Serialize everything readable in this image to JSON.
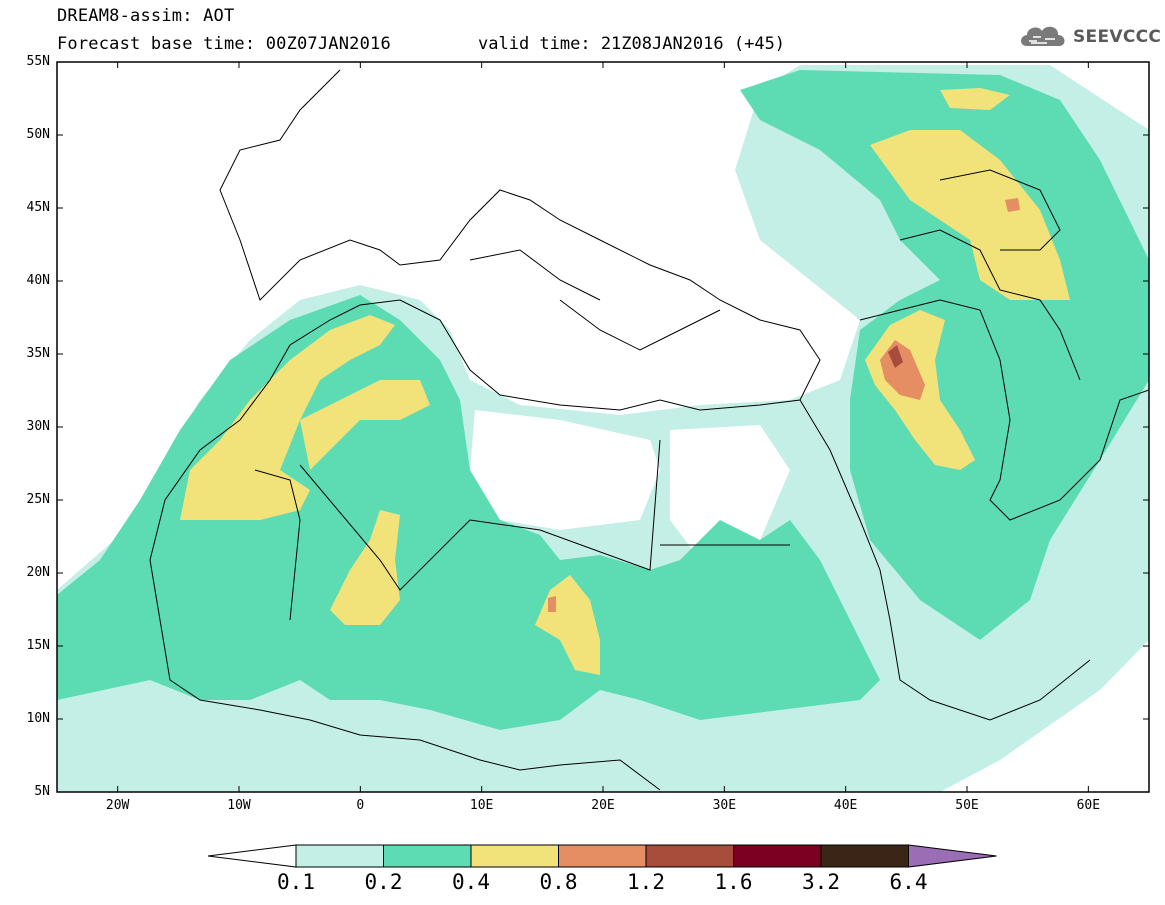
{
  "title": {
    "line1": "DREAM8-assim: AOT",
    "line2": "Forecast base time: 00Z07JAN2016",
    "valid": "valid time: 21Z08JAN2016 (+45)"
  },
  "logo": {
    "text": "SEEVCCC",
    "icon": "cloud-icon"
  },
  "map": {
    "lon_range": [
      -25,
      65
    ],
    "lat_range": [
      5,
      55
    ],
    "y_ticks": [
      {
        "value": 55,
        "label": "55N"
      },
      {
        "value": 50,
        "label": "50N"
      },
      {
        "value": 45,
        "label": "45N"
      },
      {
        "value": 40,
        "label": "40N"
      },
      {
        "value": 35,
        "label": "35N"
      },
      {
        "value": 30,
        "label": "30N"
      },
      {
        "value": 25,
        "label": "25N"
      },
      {
        "value": 20,
        "label": "20N"
      },
      {
        "value": 15,
        "label": "15N"
      },
      {
        "value": 10,
        "label": "10N"
      },
      {
        "value": 5,
        "label": "5N"
      }
    ],
    "x_ticks": [
      {
        "value": -20,
        "label": "20W"
      },
      {
        "value": -10,
        "label": "10W"
      },
      {
        "value": 0,
        "label": "0"
      },
      {
        "value": 10,
        "label": "10E"
      },
      {
        "value": 20,
        "label": "20E"
      },
      {
        "value": 30,
        "label": "30E"
      },
      {
        "value": 40,
        "label": "40E"
      },
      {
        "value": 50,
        "label": "50E"
      },
      {
        "value": 60,
        "label": "60E"
      }
    ]
  },
  "colorbar": {
    "labels": [
      "0.1",
      "0.2",
      "0.4",
      "0.8",
      "1.2",
      "1.6",
      "3.2",
      "6.4"
    ],
    "colors": [
      "#c3efe6",
      "#5ddcb3",
      "#f2e27a",
      "#e58d63",
      "#a84d3c",
      "#7a0020",
      "#3a2516"
    ],
    "under_color": "#ffffff",
    "over_color": "#9a6db4"
  }
}
